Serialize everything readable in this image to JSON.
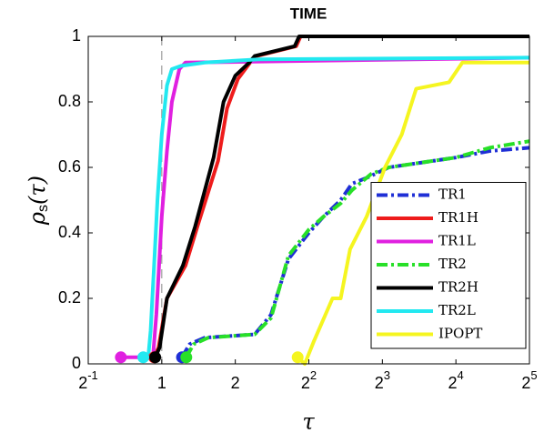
{
  "chart_data": {
    "type": "line",
    "title": "TIME",
    "xlabel": "τ",
    "ylabel": {
      "text": "ρ",
      "sub": "s",
      "rest": "(τ)"
    },
    "xscale": "log2",
    "xlim": [
      0.5,
      32
    ],
    "ylim": [
      0,
      1
    ],
    "xticks": [
      {
        "value": 0.5,
        "label": "2",
        "exponent": "-1"
      },
      1,
      2,
      {
        "value": 4,
        "label": "2",
        "exponent": "2"
      },
      {
        "value": 8,
        "label": "2",
        "exponent": "3"
      },
      {
        "value": 16,
        "label": "2",
        "exponent": "4"
      },
      {
        "value": 32,
        "label": "2",
        "exponent": "5"
      }
    ],
    "yticks": [
      0,
      0.2,
      0.4,
      0.6,
      0.8,
      1
    ],
    "reference_x": 1,
    "legend": "lower right",
    "series": [
      {
        "name": "TR1",
        "color": "#1f2fd6",
        "dash": "dashdot",
        "x": [
          1.21,
          1.3,
          1.5,
          2.4,
          2.8,
          3.3,
          4.0,
          4.6,
          5.4,
          6.0,
          7.0,
          8.5,
          16,
          22,
          32
        ],
        "values": [
          0.02,
          0.06,
          0.08,
          0.09,
          0.15,
          0.32,
          0.4,
          0.45,
          0.5,
          0.55,
          0.57,
          0.6,
          0.63,
          0.65,
          0.66
        ]
      },
      {
        "name": "TR1H",
        "color": "#ee1c1c",
        "dash": "solid",
        "x": [
          0.93,
          0.97,
          1.05,
          1.25,
          1.4,
          1.7,
          1.85,
          2.05,
          2.3,
          2.45,
          3.55,
          3.7,
          32
        ],
        "values": [
          0.02,
          0.05,
          0.2,
          0.3,
          0.42,
          0.62,
          0.78,
          0.87,
          0.92,
          0.94,
          0.97,
          1.0,
          1.0
        ]
      },
      {
        "name": "TR1L",
        "color": "#e020e0",
        "dash": "solid",
        "x": [
          0.68,
          0.92,
          0.95,
          1.0,
          1.05,
          1.1,
          1.18,
          1.25,
          32
        ],
        "values": [
          0.02,
          0.02,
          0.15,
          0.45,
          0.65,
          0.8,
          0.9,
          0.92,
          0.935
        ]
      },
      {
        "name": "TR2",
        "color": "#28e028",
        "dash": "dashdot",
        "x": [
          1.26,
          1.35,
          1.55,
          2.4,
          2.8,
          3.3,
          4.0,
          4.6,
          5.4,
          6.0,
          7.2,
          8.5,
          16,
          22,
          32
        ],
        "values": [
          0.02,
          0.06,
          0.08,
          0.09,
          0.14,
          0.33,
          0.41,
          0.45,
          0.49,
          0.53,
          0.58,
          0.6,
          0.63,
          0.66,
          0.68
        ]
      },
      {
        "name": "TR2H",
        "color": "#000000",
        "dash": "solid",
        "x": [
          0.94,
          0.98,
          1.05,
          1.22,
          1.37,
          1.63,
          1.79,
          2.0,
          2.28,
          2.4,
          3.5,
          3.65,
          32
        ],
        "values": [
          0.02,
          0.05,
          0.2,
          0.3,
          0.42,
          0.63,
          0.8,
          0.88,
          0.92,
          0.94,
          0.97,
          1.0,
          1.0
        ]
      },
      {
        "name": "TR2L",
        "color": "#22e8f0",
        "dash": "solid",
        "x": [
          0.84,
          0.88,
          0.9,
          0.93,
          0.96,
          1.0,
          1.05,
          1.1,
          1.2,
          1.5,
          2.5,
          32
        ],
        "values": [
          0.02,
          0.02,
          0.1,
          0.3,
          0.5,
          0.7,
          0.85,
          0.9,
          0.91,
          0.92,
          0.93,
          0.935
        ]
      },
      {
        "name": "IPOPT",
        "color": "#f5f520",
        "dash": "solid",
        "x": [
          3.6,
          3.85,
          4.2,
          5.0,
          5.4,
          5.9,
          6.9,
          8.2,
          9.6,
          11,
          15,
          17,
          32
        ],
        "values": [
          0.02,
          0.0,
          0.07,
          0.2,
          0.2,
          0.35,
          0.45,
          0.6,
          0.7,
          0.84,
          0.86,
          0.92,
          0.92
        ]
      }
    ]
  }
}
